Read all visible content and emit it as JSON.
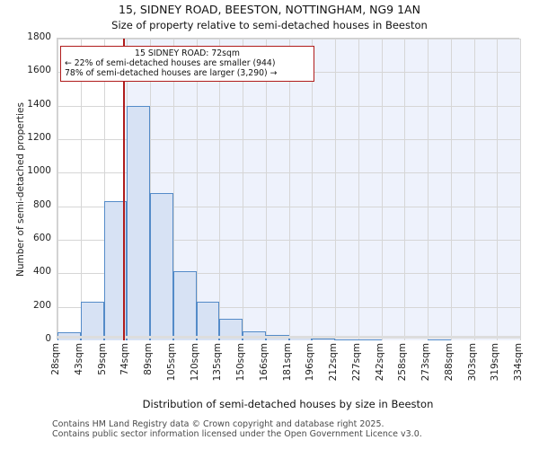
{
  "titles": {
    "line1": "15, SIDNEY ROAD, BEESTON, NOTTINGHAM, NG9 1AN",
    "line2": "Size of property relative to semi-detached houses in Beeston"
  },
  "chart_data": {
    "type": "bar",
    "subtype": "histogram",
    "x_tick_labels": [
      "28sqm",
      "43sqm",
      "59sqm",
      "74sqm",
      "89sqm",
      "105sqm",
      "120sqm",
      "135sqm",
      "150sqm",
      "166sqm",
      "181sqm",
      "196sqm",
      "212sqm",
      "227sqm",
      "242sqm",
      "258sqm",
      "273sqm",
      "288sqm",
      "303sqm",
      "319sqm",
      "334sqm"
    ],
    "bin_start_sqm": 28,
    "bin_end_sqm": 334,
    "values": [
      50,
      230,
      830,
      1400,
      880,
      415,
      230,
      130,
      55,
      30,
      18,
      12,
      8,
      8,
      0,
      0,
      8,
      0,
      0,
      0
    ],
    "ylim": [
      0,
      1800
    ],
    "ytick_step": 200,
    "ylabel": "Number of semi-detached properties",
    "xlabel": "Distribution of semi-detached houses by size in Beeston",
    "grid": true,
    "marker": {
      "value_sqm": 72,
      "line_color": "#b01c1c",
      "shade_color": "#eef2fc",
      "annotation_line1": "15 SIDNEY ROAD: 72sqm",
      "annotation_line2": "← 22% of semi-detached houses are smaller (944)",
      "annotation_line3": "78% of semi-detached houses are larger (3,290) →"
    },
    "bar_fill": "#d7e2f4",
    "bar_edge": "#548bc8"
  },
  "footer": {
    "line1": "Contains HM Land Registry data © Crown copyright and database right 2025.",
    "line2": "Contains public sector information licensed under the Open Government Licence v3.0."
  }
}
